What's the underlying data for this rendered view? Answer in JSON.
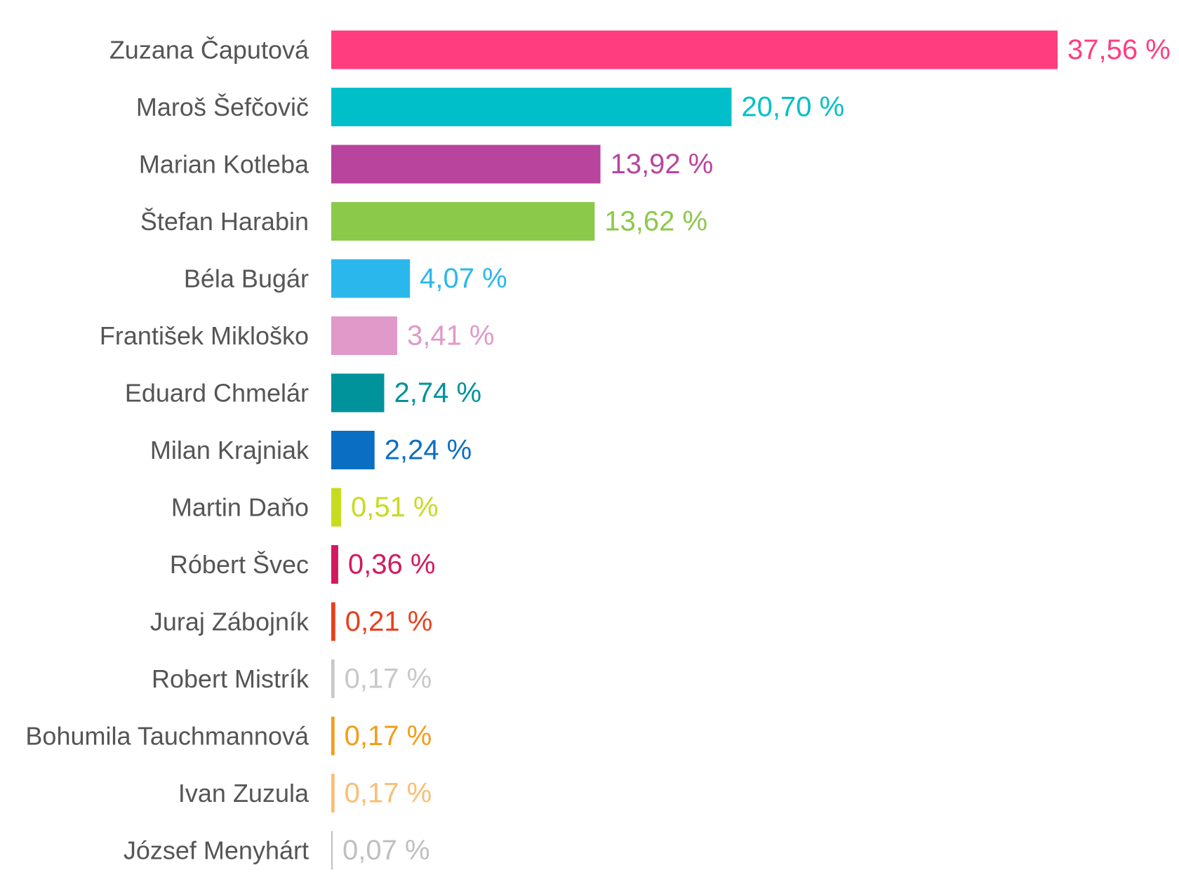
{
  "chart_data": {
    "type": "bar",
    "orientation": "horizontal",
    "title": "",
    "xlabel": "",
    "ylabel": "",
    "grid": false,
    "legend": "none",
    "xlim": [
      0,
      37.56
    ],
    "categories": [
      "Zuzana Čaputová",
      "Maroš Šefčovič",
      "Marian Kotleba",
      "Štefan Harabin",
      "Béla Bugár",
      "František Mikloško",
      "Eduard Chmelár",
      "Milan Krajniak",
      "Martin Daňo",
      "Róbert Švec",
      "Juraj Zábojník",
      "Robert Mistrík",
      "Bohumila Tauchmannová",
      "Ivan Zuzula",
      "József Menyhárt"
    ],
    "values": [
      37.56,
      20.7,
      13.92,
      13.62,
      4.07,
      3.41,
      2.74,
      2.24,
      0.51,
      0.36,
      0.21,
      0.17,
      0.17,
      0.17,
      0.07
    ],
    "value_labels": [
      "37,56 %",
      "20,70 %",
      "13,92 %",
      "13,62 %",
      "4,07 %",
      "3,41 %",
      "2,74 %",
      "2,24 %",
      "0,51 %",
      "0,36 %",
      "0,21 %",
      "0,17 %",
      "0,17 %",
      "0,17 %",
      "0,07 %"
    ],
    "colors": [
      "#ff3d7f",
      "#00bfc8",
      "#b8449e",
      "#8bc94a",
      "#2ab8ec",
      "#e099c8",
      "#00939b",
      "#0a6fc2",
      "#c6dc1e",
      "#d11a5f",
      "#e8401c",
      "#c8c8c8",
      "#f39c1a",
      "#fbbd74",
      "#bfbfbf"
    ]
  }
}
